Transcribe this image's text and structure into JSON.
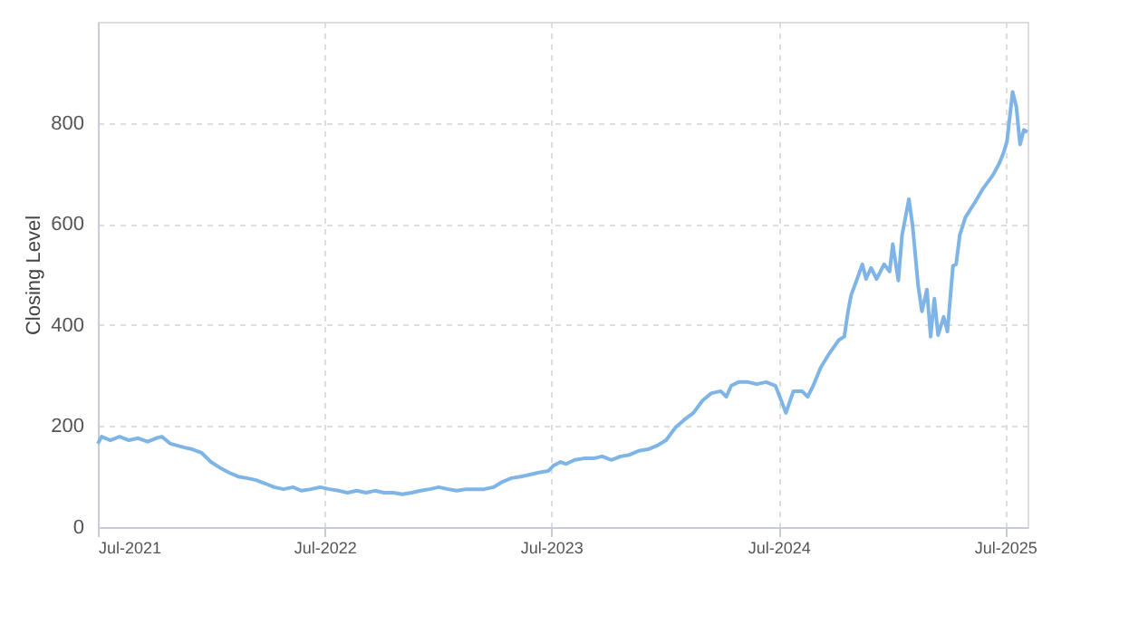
{
  "chart_data": {
    "type": "line",
    "ylabel": "Closing Level",
    "grid": true,
    "line_style": "solid",
    "marker": "none",
    "xlim": [
      "2021-07-01",
      "2025-08-06"
    ],
    "ylim": [
      0,
      1000
    ],
    "yticks": [
      0,
      200,
      400,
      600,
      800
    ],
    "xticks": [
      {
        "value": "2021-07-01",
        "label": "Jul-2021"
      },
      {
        "value": "2022-07-01",
        "label": "Jul-2022"
      },
      {
        "value": "2023-07-01",
        "label": "Jul-2023"
      },
      {
        "value": "2024-07-01",
        "label": "Jul-2024"
      },
      {
        "value": "2025-07-01",
        "label": "Jul-2025"
      }
    ],
    "x": [
      "2021-07-01",
      "2021-07-07",
      "2021-07-21",
      "2021-08-05",
      "2021-08-20",
      "2021-09-04",
      "2021-09-19",
      "2021-10-03",
      "2021-10-12",
      "2021-10-26",
      "2021-11-16",
      "2021-11-30",
      "2021-12-15",
      "2021-12-30",
      "2022-01-13",
      "2022-01-28",
      "2022-02-12",
      "2022-02-26",
      "2022-03-13",
      "2022-03-28",
      "2022-04-11",
      "2022-04-26",
      "2022-05-11",
      "2022-05-25",
      "2022-06-09",
      "2022-06-24",
      "2022-07-09",
      "2022-07-24",
      "2022-08-07",
      "2022-08-22",
      "2022-09-06",
      "2022-09-20",
      "2022-10-05",
      "2022-10-20",
      "2022-11-03",
      "2022-11-18",
      "2022-12-03",
      "2022-12-17",
      "2023-01-01",
      "2023-01-16",
      "2023-01-30",
      "2023-02-14",
      "2023-03-01",
      "2023-03-15",
      "2023-03-30",
      "2023-04-14",
      "2023-04-28",
      "2023-05-13",
      "2023-05-28",
      "2023-06-11",
      "2023-06-26",
      "2023-07-05",
      "2023-07-16",
      "2023-07-25",
      "2023-08-08",
      "2023-08-23",
      "2023-09-07",
      "2023-09-21",
      "2023-10-06",
      "2023-10-21",
      "2023-11-04",
      "2023-11-19",
      "2023-12-04",
      "2023-12-18",
      "2024-01-02",
      "2024-01-17",
      "2024-01-31",
      "2024-02-15",
      "2024-03-01",
      "2024-03-15",
      "2024-03-30",
      "2024-04-08",
      "2024-04-16",
      "2024-04-28",
      "2024-05-13",
      "2024-05-27",
      "2024-06-11",
      "2024-06-26",
      "2024-07-04",
      "2024-07-13",
      "2024-07-25",
      "2024-08-08",
      "2024-08-17",
      "2024-08-26",
      "2024-09-07",
      "2024-09-21",
      "2024-10-06",
      "2024-10-15",
      "2024-10-21",
      "2024-10-26",
      "2024-11-07",
      "2024-11-13",
      "2024-11-19",
      "2024-11-27",
      "2024-12-06",
      "2024-12-18",
      "2024-12-27",
      "2025-01-01",
      "2025-01-10",
      "2025-01-16",
      "2025-01-27",
      "2025-02-02",
      "2025-02-11",
      "2025-02-17",
      "2025-02-25",
      "2025-03-03",
      "2025-03-09",
      "2025-03-15",
      "2025-03-24",
      "2025-03-30",
      "2025-04-08",
      "2025-04-13",
      "2025-04-19",
      "2025-04-28",
      "2025-05-13",
      "2025-05-27",
      "2025-06-11",
      "2025-06-22",
      "2025-06-29",
      "2025-07-04",
      "2025-07-13",
      "2025-07-19",
      "2025-07-25",
      "2025-07-31",
      "2025-08-06"
    ],
    "series": [
      {
        "color": "#7fb5e6",
        "values": [
          165,
          179,
          172,
          179,
          172,
          176,
          169,
          176,
          179,
          165,
          158,
          154,
          147,
          129,
          118,
          108,
          100,
          97,
          93,
          86,
          79,
          75,
          79,
          72,
          75,
          79,
          75,
          72,
          68,
          72,
          68,
          72,
          68,
          68,
          65,
          68,
          72,
          75,
          79,
          75,
          72,
          75,
          75,
          75,
          79,
          90,
          97,
          100,
          104,
          108,
          111,
          122,
          129,
          125,
          133,
          136,
          136,
          140,
          133,
          140,
          143,
          151,
          154,
          161,
          172,
          197,
          212,
          226,
          251,
          265,
          269,
          258,
          280,
          287,
          287,
          283,
          287,
          280,
          255,
          226,
          269,
          269,
          258,
          280,
          316,
          344,
          370,
          377,
          427,
          459,
          499,
          520,
          491,
          513,
          491,
          520,
          506,
          560,
          488,
          578,
          649,
          596,
          477,
          427,
          470,
          377,
          452,
          380,
          416,
          387,
          517,
          520,
          578,
          613,
          642,
          671,
          696,
          721,
          743,
          764,
          861,
          832,
          757,
          786,
          782
        ]
      }
    ]
  }
}
